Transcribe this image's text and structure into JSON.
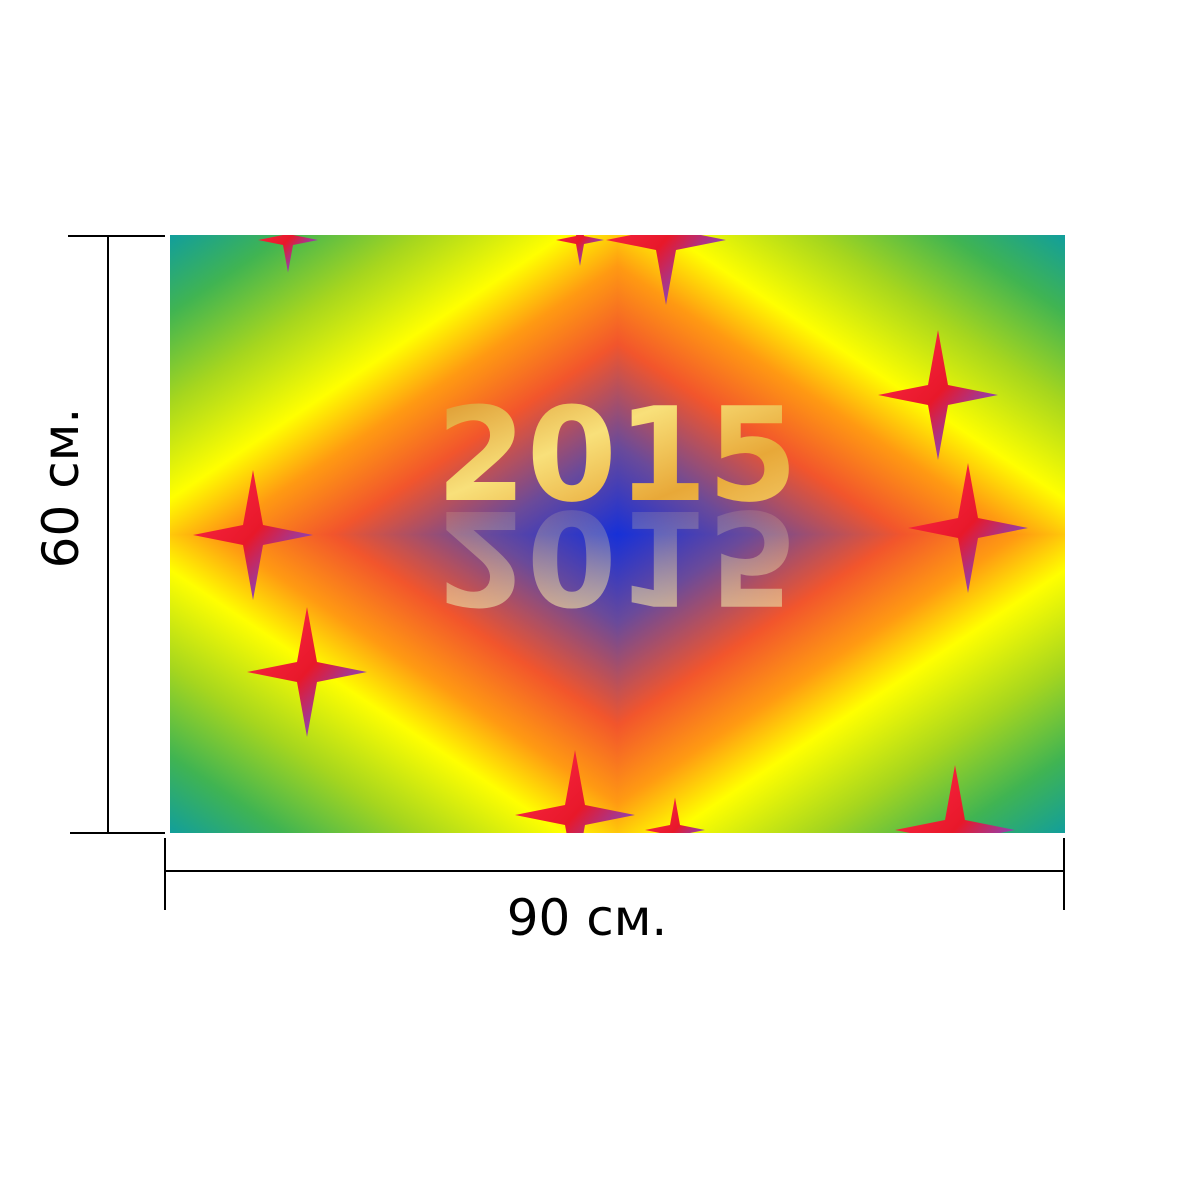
{
  "image": {
    "text": "2015"
  },
  "dimensions": {
    "height_label": "60 см.",
    "width_label": "90 см."
  }
}
